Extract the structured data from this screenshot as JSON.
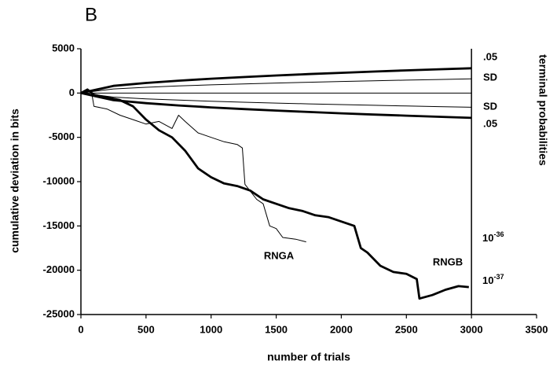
{
  "chart_data": {
    "type": "line",
    "panel": "B",
    "xlabel": "number of trials",
    "ylabel": "cumulative deviation in bits",
    "y2label": "terminal probabilities",
    "xlim": [
      0,
      3500
    ],
    "ylim": [
      -25000,
      5000
    ],
    "xticks": [
      0,
      500,
      1000,
      1500,
      2000,
      2500,
      3000,
      3500
    ],
    "yticks": [
      -25000,
      -20000,
      -15000,
      -10000,
      -5000,
      0,
      5000
    ],
    "terminal_labels": [
      {
        "base": "10",
        "exp": "-36"
      },
      {
        "base": "10",
        "exp": "-37"
      }
    ],
    "series": [
      {
        "name": "RNGA",
        "weight": "thin",
        "color": "#000000",
        "x": [
          0,
          80,
          100,
          200,
          300,
          400,
          500,
          600,
          700,
          750,
          800,
          900,
          1000,
          1100,
          1200,
          1240,
          1260,
          1350,
          1400,
          1450,
          1500,
          1550,
          1650,
          1730
        ],
        "values": [
          0,
          200,
          -1500,
          -1800,
          -2500,
          -3000,
          -3500,
          -3200,
          -4000,
          -2500,
          -3200,
          -4500,
          -5000,
          -5500,
          -5800,
          -6200,
          -10300,
          -12000,
          -12500,
          -15000,
          -15300,
          -16300,
          -16500,
          -16800
        ]
      },
      {
        "name": "RNGB",
        "weight": "bold",
        "color": "#000000",
        "x": [
          0,
          50,
          100,
          200,
          300,
          400,
          500,
          600,
          700,
          800,
          900,
          1000,
          1100,
          1200,
          1300,
          1400,
          1500,
          1600,
          1700,
          1800,
          1900,
          2000,
          2100,
          2150,
          2200,
          2300,
          2400,
          2500,
          2580,
          2600,
          2700,
          2800,
          2900,
          2980
        ],
        "values": [
          0,
          400,
          -200,
          -500,
          -800,
          -1500,
          -3000,
          -4200,
          -5000,
          -6500,
          -8500,
          -9500,
          -10200,
          -10500,
          -11000,
          -12000,
          -12500,
          -13000,
          -13300,
          -13800,
          -14000,
          -14500,
          -15000,
          -17500,
          -18000,
          -19500,
          -20200,
          -20400,
          -21000,
          -23200,
          -22800,
          -22200,
          -21800,
          -21900
        ]
      },
      {
        "name": ".05",
        "weight": "bold",
        "color": "#000000",
        "x": [
          0,
          250,
          500,
          750,
          1000,
          1250,
          1500,
          1750,
          2000,
          2250,
          2500,
          2750,
          3000
        ],
        "values": [
          0,
          808,
          1143,
          1400,
          1617,
          1807,
          1980,
          2139,
          2286,
          2425,
          2556,
          2681,
          2800
        ]
      },
      {
        "name": "SD",
        "weight": "thin",
        "color": "#000000",
        "x": [
          0,
          250,
          500,
          750,
          1000,
          1250,
          1500,
          1750,
          2000,
          2250,
          2500,
          2750,
          3000
        ],
        "values": [
          0,
          462,
          653,
          800,
          924,
          1033,
          1131,
          1222,
          1306,
          1386,
          1461,
          1532,
          1600
        ]
      },
      {
        "name": "SD",
        "weight": "thin",
        "color": "#000000",
        "x": [
          0,
          250,
          500,
          750,
          1000,
          1250,
          1500,
          1750,
          2000,
          2250,
          2500,
          2750,
          3000
        ],
        "values": [
          0,
          -462,
          -653,
          -800,
          -924,
          -1033,
          -1131,
          -1222,
          -1306,
          -1386,
          -1461,
          -1532,
          -1600
        ]
      },
      {
        "name": ".05",
        "weight": "bold",
        "color": "#000000",
        "x": [
          0,
          250,
          500,
          750,
          1000,
          1250,
          1500,
          1750,
          2000,
          2250,
          2500,
          2750,
          3000
        ],
        "values": [
          0,
          -808,
          -1143,
          -1400,
          -1617,
          -1807,
          -1980,
          -2139,
          -2286,
          -2425,
          -2556,
          -2681,
          -2800
        ]
      }
    ]
  }
}
